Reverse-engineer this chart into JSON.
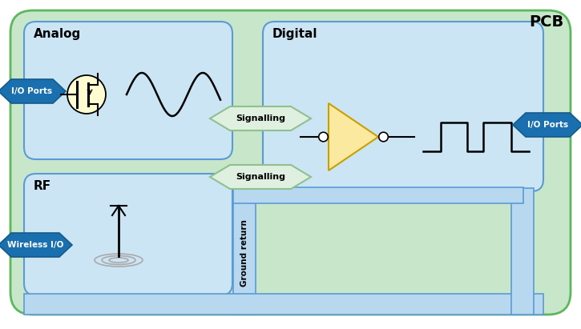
{
  "bg_pcb": "#c8e6c9",
  "bg_analog": "#cce5f5",
  "bg_digital": "#cce5f5",
  "bg_rf": "#cce5f5",
  "border_color": "#5b9bd5",
  "pcb_border": "#5cb85c",
  "arrow_fill": "#1a6faf",
  "arrow_edge": "#155a8a",
  "signalling_fill": "#e0f0e0",
  "signalling_edge": "#90c090",
  "transistor_fill": "#fefcd0",
  "buffer_fill": "#fce9a0",
  "ground_fill": "#b8d8f0",
  "ground_edge": "#5b9bd5",
  "title_pcb": "PCB",
  "title_analog": "Analog",
  "title_digital": "Digital",
  "title_rf": "RF",
  "label_io_left": "I/O Ports",
  "label_io_right": "I/O Ports",
  "label_wireless": "Wireless I/O",
  "label_signalling_top": "Signalling",
  "label_signalling_bot": "Signalling",
  "label_ground": "Ground return",
  "figw": 7.25,
  "figh": 4.11,
  "dpi": 100
}
